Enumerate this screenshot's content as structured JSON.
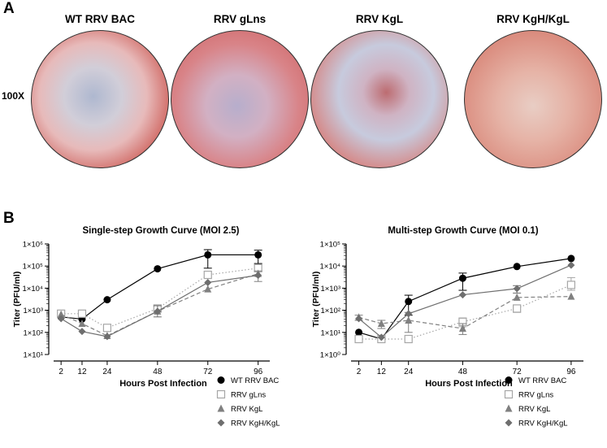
{
  "panel_a": {
    "letter": "A",
    "magnification": "100X",
    "images": [
      {
        "title": "WT RRV BAC"
      },
      {
        "title": "RRV gLns"
      },
      {
        "title": "RRV KgL"
      },
      {
        "title": "RRV KgH/KgL"
      }
    ]
  },
  "panel_b": {
    "letter": "B"
  },
  "colors": {
    "wt": "#000000",
    "glns": "#a6a6a6",
    "kgl": "#808080",
    "kghkgl": "#6e6e6e"
  },
  "chart_data": [
    {
      "type": "line",
      "title": "Single-step Growth Curve (MOI 2.5)",
      "xlabel": "Hours Post Infection",
      "ylabel": "Titer (PFU/ml)",
      "yscale": "log",
      "ylim": [
        10,
        1000000
      ],
      "yticks": [
        {
          "value": 10,
          "label": "1×10¹"
        },
        {
          "value": 100,
          "label": "1×10²"
        },
        {
          "value": 1000,
          "label": "1×10³"
        },
        {
          "value": 10000,
          "label": "1×10⁴"
        },
        {
          "value": 100000,
          "label": "1×10⁵"
        },
        {
          "value": 1000000,
          "label": "1×10⁶"
        }
      ],
      "x": [
        2,
        12,
        24,
        48,
        72,
        96
      ],
      "xticklabels": [
        "2",
        "12",
        "24",
        "48",
        "72",
        "96"
      ],
      "legend": "bottom-right",
      "series": [
        {
          "name": "WT RRV BAC",
          "key": "wt",
          "marker": "circle",
          "dash": "solid",
          "values": [
            500,
            400,
            3000,
            75000,
            320000,
            320000
          ],
          "err": [
            0,
            0,
            0,
            0,
            [
              80000,
              550000
            ],
            [
              130000,
              520000
            ]
          ]
        },
        {
          "name": "RRV gLns",
          "key": "glns",
          "marker": "square-open",
          "dash": "dotted",
          "values": [
            700,
            700,
            160,
            1200,
            40000,
            80000
          ],
          "err": [
            0,
            0,
            0,
            [
              900,
              1500
            ],
            0,
            [
              60000,
              110000
            ]
          ]
        },
        {
          "name": "RRV KgL",
          "key": "kgl",
          "marker": "triangle",
          "dash": "dashed",
          "values": [
            650,
            250,
            70,
            900,
            9000,
            45000
          ],
          "err": [
            0,
            0,
            0,
            0,
            0,
            [
              20000,
              60000
            ]
          ]
        },
        {
          "name": "RRV KgH/KgL",
          "key": "kghkgl",
          "marker": "diamond",
          "dash": "solid",
          "values": [
            420,
            110,
            65,
            900,
            18000,
            38000
          ],
          "err": [
            0,
            0,
            0,
            [
              500,
              1600
            ],
            0,
            0
          ]
        }
      ]
    },
    {
      "type": "line",
      "title": "Multi-step Growth Curve (MOI 0.1)",
      "xlabel": "Hours Post Infection",
      "ylabel": "Titer (PFU/ml)",
      "yscale": "log",
      "ylim": [
        1,
        100000
      ],
      "yticks": [
        {
          "value": 1,
          "label": "1×10⁰"
        },
        {
          "value": 10,
          "label": "1×10¹"
        },
        {
          "value": 100,
          "label": "1×10²"
        },
        {
          "value": 1000,
          "label": "1×10³"
        },
        {
          "value": 10000,
          "label": "1×10⁴"
        },
        {
          "value": 100000,
          "label": "1×10⁵"
        }
      ],
      "x": [
        2,
        12,
        24,
        48,
        72,
        96
      ],
      "xticklabels": [
        "2",
        "12",
        "24",
        "48",
        "72",
        "96"
      ],
      "legend": "bottom-right",
      "series": [
        {
          "name": "WT RRV BAC",
          "key": "wt",
          "marker": "circle",
          "dash": "solid",
          "values": [
            10,
            5,
            250,
            2800,
            9500,
            22000
          ],
          "err": [
            0,
            0,
            [
              60,
              480
            ],
            [
              800,
              4800
            ],
            0,
            0
          ]
        },
        {
          "name": "RRV gLns",
          "key": "glns",
          "marker": "square-open",
          "dash": "dotted",
          "values": [
            5,
            5,
            5,
            30,
            120,
            1400
          ],
          "err": [
            0,
            0,
            0,
            [
              18,
              45
            ],
            [
              80,
              160
            ],
            [
              800,
              3000
            ]
          ]
        },
        {
          "name": "RRV KgL",
          "key": "kgl",
          "marker": "triangle",
          "dash": "dashed",
          "values": [
            48,
            25,
            35,
            15,
            380,
            420
          ],
          "err": [
            [
              35,
              60
            ],
            [
              15,
              35
            ],
            [
              10,
              80
            ],
            [
              8,
              25
            ],
            0,
            0
          ]
        },
        {
          "name": "RRV KgH/KgL",
          "key": "kghkgl",
          "marker": "diamond",
          "dash": "solid",
          "values": [
            42,
            6,
            70,
            500,
            950,
            11000
          ],
          "err": [
            0,
            0,
            0,
            0,
            [
              600,
              1300
            ],
            0
          ]
        }
      ]
    }
  ]
}
